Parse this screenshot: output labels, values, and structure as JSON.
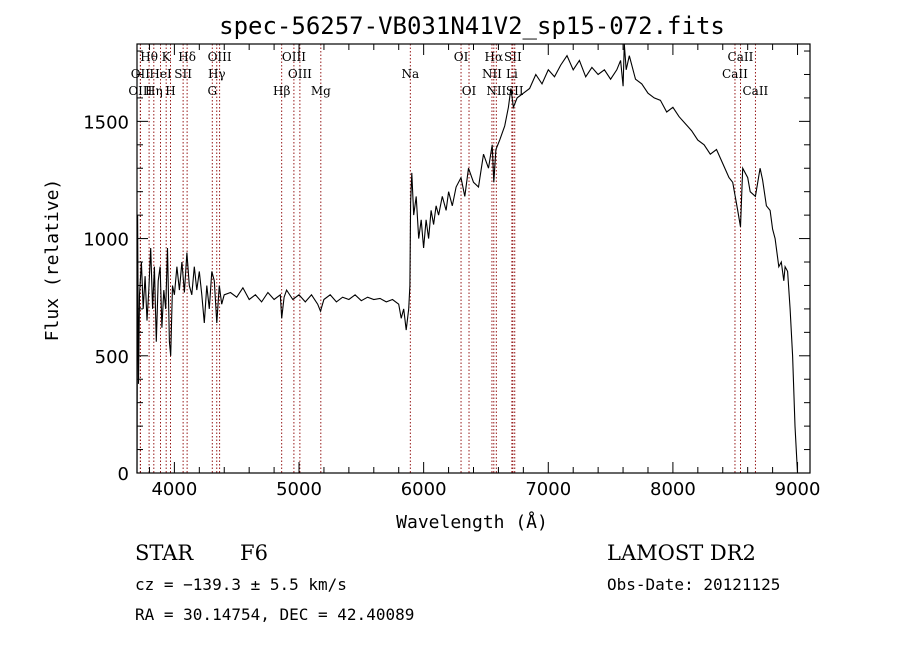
{
  "chart_data": {
    "type": "line",
    "title": "spec-56257-VB031N41V2_sp15-072.fits",
    "xlabel": "Wavelength (Å)",
    "ylabel": "Flux (relative)",
    "xlim": [
      3700,
      9100
    ],
    "ylim": [
      0,
      1830
    ],
    "x_ticks": [
      4000,
      5000,
      6000,
      7000,
      8000,
      9000
    ],
    "y_ticks": [
      0,
      500,
      1000,
      1500
    ],
    "x_minor_step": 200,
    "y_minor_step": 100,
    "grid": false,
    "series": [
      {
        "points": [
          [
            3700,
            0
          ],
          [
            3705,
            1100
          ],
          [
            3712,
            380
          ],
          [
            3720,
            760
          ],
          [
            3735,
            900
          ],
          [
            3750,
            700
          ],
          [
            3765,
            840
          ],
          [
            3780,
            650
          ],
          [
            3795,
            780
          ],
          [
            3810,
            960
          ],
          [
            3825,
            700
          ],
          [
            3840,
            880
          ],
          [
            3855,
            560
          ],
          [
            3870,
            820
          ],
          [
            3885,
            880
          ],
          [
            3900,
            620
          ],
          [
            3915,
            780
          ],
          [
            3930,
            700
          ],
          [
            3945,
            960
          ],
          [
            3960,
            560
          ],
          [
            3970,
            500
          ],
          [
            3985,
            800
          ],
          [
            4000,
            760
          ],
          [
            4020,
            880
          ],
          [
            4040,
            780
          ],
          [
            4060,
            900
          ],
          [
            4080,
            770
          ],
          [
            4100,
            940
          ],
          [
            4120,
            800
          ],
          [
            4140,
            760
          ],
          [
            4160,
            880
          ],
          [
            4180,
            780
          ],
          [
            4200,
            860
          ],
          [
            4220,
            760
          ],
          [
            4240,
            640
          ],
          [
            4260,
            800
          ],
          [
            4280,
            700
          ],
          [
            4300,
            860
          ],
          [
            4320,
            820
          ],
          [
            4340,
            640
          ],
          [
            4360,
            800
          ],
          [
            4380,
            720
          ],
          [
            4400,
            760
          ],
          [
            4450,
            770
          ],
          [
            4500,
            750
          ],
          [
            4550,
            790
          ],
          [
            4600,
            740
          ],
          [
            4650,
            760
          ],
          [
            4700,
            730
          ],
          [
            4750,
            770
          ],
          [
            4800,
            740
          ],
          [
            4850,
            760
          ],
          [
            4861,
            660
          ],
          [
            4880,
            750
          ],
          [
            4900,
            780
          ],
          [
            4950,
            740
          ],
          [
            5000,
            760
          ],
          [
            5050,
            730
          ],
          [
            5100,
            760
          ],
          [
            5150,
            720
          ],
          [
            5172,
            690
          ],
          [
            5200,
            740
          ],
          [
            5250,
            760
          ],
          [
            5300,
            730
          ],
          [
            5350,
            750
          ],
          [
            5400,
            740
          ],
          [
            5450,
            760
          ],
          [
            5500,
            735
          ],
          [
            5550,
            750
          ],
          [
            5600,
            740
          ],
          [
            5650,
            745
          ],
          [
            5700,
            730
          ],
          [
            5750,
            740
          ],
          [
            5800,
            720
          ],
          [
            5820,
            660
          ],
          [
            5840,
            700
          ],
          [
            5860,
            610
          ],
          [
            5880,
            700
          ],
          [
            5890,
            800
          ],
          [
            5895,
            1150
          ],
          [
            5905,
            1280
          ],
          [
            5920,
            1100
          ],
          [
            5940,
            1180
          ],
          [
            5960,
            1000
          ],
          [
            5980,
            1080
          ],
          [
            6000,
            960
          ],
          [
            6020,
            1080
          ],
          [
            6040,
            1000
          ],
          [
            6060,
            1120
          ],
          [
            6080,
            1060
          ],
          [
            6100,
            1140
          ],
          [
            6120,
            1100
          ],
          [
            6150,
            1180
          ],
          [
            6180,
            1120
          ],
          [
            6200,
            1200
          ],
          [
            6230,
            1140
          ],
          [
            6260,
            1220
          ],
          [
            6300,
            1260
          ],
          [
            6330,
            1180
          ],
          [
            6360,
            1300
          ],
          [
            6400,
            1240
          ],
          [
            6440,
            1220
          ],
          [
            6480,
            1360
          ],
          [
            6520,
            1300
          ],
          [
            6550,
            1400
          ],
          [
            6563,
            1240
          ],
          [
            6580,
            1380
          ],
          [
            6610,
            1420
          ],
          [
            6650,
            1480
          ],
          [
            6680,
            1560
          ],
          [
            6700,
            1640
          ],
          [
            6720,
            1560
          ],
          [
            6750,
            1600
          ],
          [
            6800,
            1620
          ],
          [
            6850,
            1640
          ],
          [
            6900,
            1700
          ],
          [
            6950,
            1660
          ],
          [
            7000,
            1720
          ],
          [
            7050,
            1690
          ],
          [
            7100,
            1740
          ],
          [
            7150,
            1780
          ],
          [
            7200,
            1720
          ],
          [
            7250,
            1760
          ],
          [
            7300,
            1690
          ],
          [
            7350,
            1730
          ],
          [
            7400,
            1700
          ],
          [
            7450,
            1720
          ],
          [
            7500,
            1680
          ],
          [
            7550,
            1720
          ],
          [
            7580,
            1760
          ],
          [
            7600,
            1650
          ],
          [
            7610,
            1880
          ],
          [
            7625,
            1720
          ],
          [
            7650,
            1780
          ],
          [
            7700,
            1680
          ],
          [
            7750,
            1660
          ],
          [
            7800,
            1620
          ],
          [
            7850,
            1600
          ],
          [
            7900,
            1590
          ],
          [
            7950,
            1540
          ],
          [
            8000,
            1560
          ],
          [
            8050,
            1520
          ],
          [
            8100,
            1490
          ],
          [
            8150,
            1460
          ],
          [
            8200,
            1420
          ],
          [
            8250,
            1400
          ],
          [
            8300,
            1360
          ],
          [
            8350,
            1380
          ],
          [
            8400,
            1320
          ],
          [
            8450,
            1260
          ],
          [
            8480,
            1240
          ],
          [
            8500,
            1180
          ],
          [
            8520,
            1120
          ],
          [
            8542,
            1050
          ],
          [
            8560,
            1300
          ],
          [
            8600,
            1260
          ],
          [
            8620,
            1200
          ],
          [
            8662,
            1180
          ],
          [
            8700,
            1300
          ],
          [
            8720,
            1250
          ],
          [
            8750,
            1140
          ],
          [
            8780,
            1120
          ],
          [
            8800,
            1040
          ],
          [
            8820,
            1000
          ],
          [
            8850,
            880
          ],
          [
            8870,
            900
          ],
          [
            8890,
            820
          ],
          [
            8900,
            880
          ],
          [
            8920,
            860
          ],
          [
            8940,
            700
          ],
          [
            8960,
            500
          ],
          [
            8980,
            200
          ],
          [
            9000,
            0
          ]
        ]
      }
    ],
    "annotation_lines": [
      {
        "label": "Hθ",
        "x": 3797,
        "row": 1
      },
      {
        "label": "OII",
        "x": 3727,
        "row": 2
      },
      {
        "label": "OIII",
        "x": 3727,
        "row": 3
      },
      {
        "label": "HeI",
        "x": 3889,
        "row": 2
      },
      {
        "label": "Hη",
        "x": 3835,
        "row": 3
      },
      {
        "label": "K",
        "x": 3934,
        "row": 1
      },
      {
        "label": "H",
        "x": 3969,
        "row": 3
      },
      {
        "label": "SII",
        "x": 4070,
        "row": 2
      },
      {
        "label": "Hδ",
        "x": 4102,
        "row": 1
      },
      {
        "label": "OIII",
        "x": 4363,
        "row": 1
      },
      {
        "label": "Hγ",
        "x": 4340,
        "row": 2
      },
      {
        "label": "G",
        "x": 4304,
        "row": 3
      },
      {
        "label": "Hβ",
        "x": 4861,
        "row": 3
      },
      {
        "label": "OIII",
        "x": 4959,
        "row": 1
      },
      {
        "label": "OIII",
        "x": 5007,
        "row": 2
      },
      {
        "label": "Mg",
        "x": 5175,
        "row": 3
      },
      {
        "label": "Na",
        "x": 5893,
        "row": 2
      },
      {
        "label": "OI",
        "x": 6300,
        "row": 1
      },
      {
        "label": "OI",
        "x": 6364,
        "row": 3
      },
      {
        "label": "Hα",
        "x": 6563,
        "row": 1
      },
      {
        "label": "NII",
        "x": 6548,
        "row": 2
      },
      {
        "label": "NII",
        "x": 6583,
        "row": 3
      },
      {
        "label": "SII",
        "x": 6716,
        "row": 1
      },
      {
        "label": "Li",
        "x": 6708,
        "row": 2
      },
      {
        "label": "SII",
        "x": 6731,
        "row": 3
      },
      {
        "label": "CaII",
        "x": 8542,
        "row": 1
      },
      {
        "label": "CaII",
        "x": 8498,
        "row": 2
      },
      {
        "label": "CaII",
        "x": 8662,
        "row": 3
      }
    ]
  },
  "info": {
    "object_class": "STAR",
    "subclass": "F6",
    "survey": "LAMOST DR2",
    "cz": "cz = −139.3 ± 5.5 km/s",
    "obs_date": "Obs-Date: 20121125",
    "coords": "RA =  30.14754, DEC =  42.40089"
  },
  "colors": {
    "spectrum": "#000000",
    "annotation_line": "#8b0000",
    "background": "#ffffff"
  }
}
